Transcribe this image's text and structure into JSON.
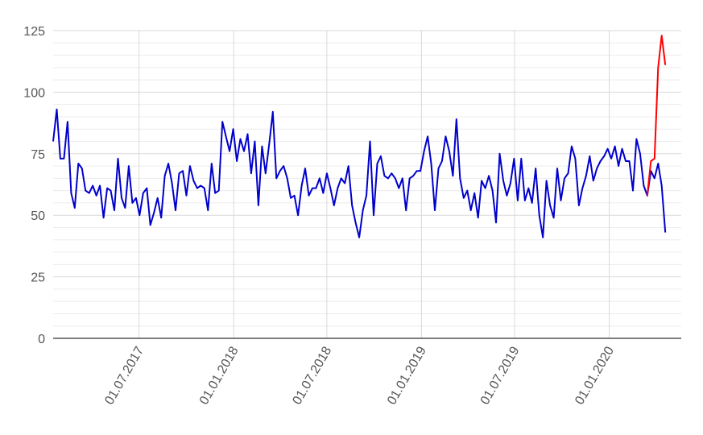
{
  "chart_data": {
    "type": "line",
    "title": "",
    "xlabel": "",
    "ylabel": "",
    "ylim": [
      0,
      125
    ],
    "y_ticks": [
      0,
      25,
      50,
      75,
      100,
      125
    ],
    "x_ticks": [
      "01.07.2017",
      "01.01.2018",
      "01.07.2018",
      "01.01.2019",
      "01.07.2019",
      "01.01.2020"
    ],
    "x_range": [
      "2017-01-15",
      "2020-05-20"
    ],
    "grid": true,
    "legend": "none",
    "colors": {
      "main": "#0000cc",
      "highlight": "#ff0000",
      "grid": "#d9d9d9",
      "axis": "#333333"
    },
    "series": [
      {
        "color": "#0000cc",
        "points": [
          [
            "2017-01-15",
            80
          ],
          [
            "2017-01-22",
            93
          ],
          [
            "2017-01-29",
            73
          ],
          [
            "2017-02-05",
            73
          ],
          [
            "2017-02-12",
            88
          ],
          [
            "2017-02-19",
            59
          ],
          [
            "2017-02-26",
            53
          ],
          [
            "2017-03-05",
            71
          ],
          [
            "2017-03-12",
            69
          ],
          [
            "2017-03-19",
            60
          ],
          [
            "2017-03-26",
            59
          ],
          [
            "2017-04-02",
            62
          ],
          [
            "2017-04-09",
            58
          ],
          [
            "2017-04-16",
            62
          ],
          [
            "2017-04-23",
            49
          ],
          [
            "2017-04-30",
            61
          ],
          [
            "2017-05-07",
            60
          ],
          [
            "2017-05-14",
            52
          ],
          [
            "2017-05-21",
            73
          ],
          [
            "2017-05-28",
            57
          ],
          [
            "2017-06-04",
            53
          ],
          [
            "2017-06-11",
            70
          ],
          [
            "2017-06-18",
            55
          ],
          [
            "2017-06-25",
            57
          ],
          [
            "2017-07-02",
            50
          ],
          [
            "2017-07-09",
            59
          ],
          [
            "2017-07-16",
            61
          ],
          [
            "2017-07-23",
            46
          ],
          [
            "2017-07-30",
            51
          ],
          [
            "2017-08-06",
            57
          ],
          [
            "2017-08-13",
            49
          ],
          [
            "2017-08-20",
            66
          ],
          [
            "2017-08-27",
            71
          ],
          [
            "2017-09-03",
            63
          ],
          [
            "2017-09-10",
            52
          ],
          [
            "2017-09-17",
            67
          ],
          [
            "2017-09-24",
            68
          ],
          [
            "2017-10-01",
            58
          ],
          [
            "2017-10-08",
            70
          ],
          [
            "2017-10-15",
            64
          ],
          [
            "2017-10-22",
            61
          ],
          [
            "2017-10-29",
            62
          ],
          [
            "2017-11-05",
            61
          ],
          [
            "2017-11-12",
            52
          ],
          [
            "2017-11-19",
            71
          ],
          [
            "2017-11-26",
            59
          ],
          [
            "2017-12-03",
            60
          ],
          [
            "2017-12-10",
            88
          ],
          [
            "2017-12-17",
            82
          ],
          [
            "2017-12-24",
            76
          ],
          [
            "2017-12-31",
            85
          ],
          [
            "2018-01-07",
            72
          ],
          [
            "2018-01-14",
            81
          ],
          [
            "2018-01-21",
            76
          ],
          [
            "2018-01-28",
            83
          ],
          [
            "2018-02-04",
            67
          ],
          [
            "2018-02-11",
            80
          ],
          [
            "2018-02-18",
            54
          ],
          [
            "2018-02-25",
            78
          ],
          [
            "2018-03-04",
            67
          ],
          [
            "2018-03-11",
            79
          ],
          [
            "2018-03-18",
            92
          ],
          [
            "2018-03-25",
            65
          ],
          [
            "2018-04-01",
            68
          ],
          [
            "2018-04-08",
            70
          ],
          [
            "2018-04-15",
            65
          ],
          [
            "2018-04-22",
            57
          ],
          [
            "2018-04-29",
            58
          ],
          [
            "2018-05-06",
            50
          ],
          [
            "2018-05-13",
            62
          ],
          [
            "2018-05-20",
            69
          ],
          [
            "2018-05-27",
            58
          ],
          [
            "2018-06-03",
            61
          ],
          [
            "2018-06-10",
            61
          ],
          [
            "2018-06-17",
            65
          ],
          [
            "2018-06-24",
            59
          ],
          [
            "2018-07-01",
            67
          ],
          [
            "2018-07-08",
            61
          ],
          [
            "2018-07-15",
            54
          ],
          [
            "2018-07-22",
            61
          ],
          [
            "2018-07-29",
            65
          ],
          [
            "2018-08-05",
            63
          ],
          [
            "2018-08-12",
            70
          ],
          [
            "2018-08-19",
            54
          ],
          [
            "2018-08-26",
            47
          ],
          [
            "2018-09-02",
            41
          ],
          [
            "2018-09-09",
            52
          ],
          [
            "2018-09-16",
            58
          ],
          [
            "2018-09-23",
            80
          ],
          [
            "2018-09-30",
            50
          ],
          [
            "2018-10-07",
            71
          ],
          [
            "2018-10-14",
            74
          ],
          [
            "2018-10-21",
            66
          ],
          [
            "2018-10-28",
            65
          ],
          [
            "2018-11-04",
            67
          ],
          [
            "2018-11-11",
            65
          ],
          [
            "2018-11-18",
            61
          ],
          [
            "2018-11-25",
            65
          ],
          [
            "2018-12-02",
            52
          ],
          [
            "2018-12-09",
            65
          ],
          [
            "2018-12-16",
            66
          ],
          [
            "2018-12-23",
            68
          ],
          [
            "2018-12-30",
            68
          ],
          [
            "2019-01-06",
            76
          ],
          [
            "2019-01-13",
            82
          ],
          [
            "2019-01-20",
            71
          ],
          [
            "2019-01-27",
            52
          ],
          [
            "2019-02-03",
            69
          ],
          [
            "2019-02-10",
            72
          ],
          [
            "2019-02-17",
            82
          ],
          [
            "2019-02-24",
            76
          ],
          [
            "2019-03-03",
            66
          ],
          [
            "2019-03-10",
            89
          ],
          [
            "2019-03-17",
            65
          ],
          [
            "2019-03-24",
            57
          ],
          [
            "2019-03-31",
            60
          ],
          [
            "2019-04-07",
            52
          ],
          [
            "2019-04-14",
            59
          ],
          [
            "2019-04-21",
            49
          ],
          [
            "2019-04-28",
            64
          ],
          [
            "2019-05-05",
            61
          ],
          [
            "2019-05-12",
            66
          ],
          [
            "2019-05-19",
            60
          ],
          [
            "2019-05-26",
            47
          ],
          [
            "2019-06-02",
            75
          ],
          [
            "2019-06-09",
            64
          ],
          [
            "2019-06-16",
            58
          ],
          [
            "2019-06-23",
            63
          ],
          [
            "2019-06-30",
            73
          ],
          [
            "2019-07-07",
            56
          ],
          [
            "2019-07-14",
            73
          ],
          [
            "2019-07-21",
            56
          ],
          [
            "2019-07-28",
            61
          ],
          [
            "2019-08-04",
            55
          ],
          [
            "2019-08-11",
            69
          ],
          [
            "2019-08-18",
            50
          ],
          [
            "2019-08-25",
            41
          ],
          [
            "2019-09-01",
            64
          ],
          [
            "2019-09-08",
            54
          ],
          [
            "2019-09-15",
            49
          ],
          [
            "2019-09-22",
            69
          ],
          [
            "2019-09-29",
            56
          ],
          [
            "2019-10-06",
            65
          ],
          [
            "2019-10-13",
            67
          ],
          [
            "2019-10-20",
            78
          ],
          [
            "2019-10-27",
            73
          ],
          [
            "2019-11-03",
            54
          ],
          [
            "2019-11-10",
            61
          ],
          [
            "2019-11-17",
            66
          ],
          [
            "2019-11-24",
            74
          ],
          [
            "2019-12-01",
            64
          ],
          [
            "2019-12-08",
            69
          ],
          [
            "2019-12-15",
            72
          ],
          [
            "2019-12-22",
            74
          ],
          [
            "2019-12-29",
            77
          ],
          [
            "2020-01-05",
            73
          ],
          [
            "2020-01-12",
            78
          ],
          [
            "2020-01-19",
            70
          ],
          [
            "2020-01-26",
            77
          ],
          [
            "2020-02-02",
            72
          ],
          [
            "2020-02-09",
            72
          ],
          [
            "2020-02-16",
            60
          ],
          [
            "2020-02-23",
            81
          ],
          [
            "2020-03-01",
            75
          ],
          [
            "2020-03-08",
            62
          ],
          [
            "2020-03-15",
            58
          ],
          [
            "2020-03-22",
            68
          ],
          [
            "2020-03-29",
            65
          ],
          [
            "2020-04-05",
            71
          ],
          [
            "2020-04-12",
            62
          ],
          [
            "2020-04-19",
            43
          ]
        ]
      },
      {
        "color": "#ff0000",
        "points": [
          [
            "2020-03-15",
            58
          ],
          [
            "2020-03-22",
            72
          ],
          [
            "2020-03-29",
            73
          ],
          [
            "2020-04-05",
            110
          ],
          [
            "2020-04-12",
            123
          ],
          [
            "2020-04-19",
            111
          ]
        ]
      }
    ]
  }
}
